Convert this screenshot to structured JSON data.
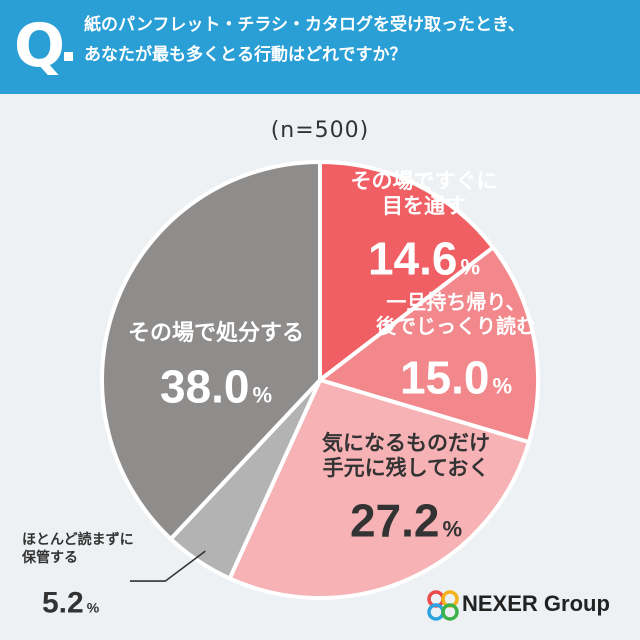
{
  "header": {
    "q_mark": "Q",
    "line1": "紙のパンフレット・チラシ・カタログを受け取ったとき、",
    "line2": "あなたが最も多くとる行動はどれですか？"
  },
  "sample_label": "(n=500)",
  "brand": {
    "name": "NEXER Group"
  },
  "colors": {
    "header": "#2a9fd6",
    "slice1": "#ef5f64",
    "slice2": "#f3888c",
    "slice3": "#f6b2b5",
    "slice4": "#b3b3b3",
    "slice5": "#8f8c8c"
  },
  "chart_data": {
    "type": "pie",
    "start_angle_deg": 0,
    "direction": "clockwise",
    "slices": [
      {
        "label_lines": [
          "その場ですぐに",
          "目を通す"
        ],
        "value": 14.6,
        "display": "14.6",
        "color": "#ef5f64",
        "label_color": "#ffffff"
      },
      {
        "label_lines": [
          "一旦持ち帰り、",
          "後でじっくり読む"
        ],
        "value": 15.0,
        "display": "15.0",
        "color": "#f3888c",
        "label_color": "#ffffff"
      },
      {
        "label_lines": [
          "気になるものだけ",
          "手元に残しておく"
        ],
        "value": 27.2,
        "display": "27.2",
        "color": "#f6b2b5",
        "label_color": "#333333"
      },
      {
        "label_lines": [
          "ほとんど読まずに",
          "保管する"
        ],
        "value": 5.2,
        "display": "5.2",
        "color": "#b3b3b3",
        "label_color": "#333333"
      },
      {
        "label_lines": [
          "その場で処分する"
        ],
        "value": 38.0,
        "display": "38.0",
        "color": "#8f8c8c",
        "label_color": "#ffffff"
      }
    ],
    "unit": "%"
  }
}
